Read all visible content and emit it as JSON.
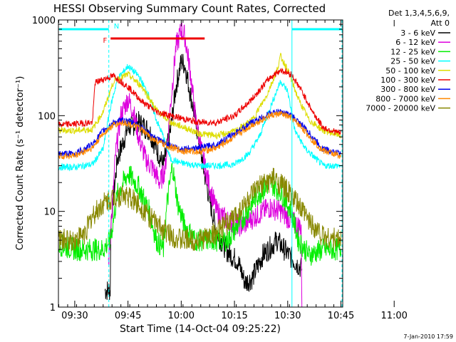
{
  "chart_data": {
    "type": "line",
    "title": "HESSI Observing Summary Count Rates, Corrected",
    "xlabel": "Start Time (14-Oct-04 09:25:22)",
    "ylabel": "Corrected Count Rate (s⁻¹ detector⁻¹)",
    "x_ticks": [
      "09:30",
      "09:45",
      "10:00",
      "10:15",
      "10:30",
      "10:45",
      "11:00"
    ],
    "x_range_minutes_after_09_00": [
      25.4,
      105.5
    ],
    "y_scale": "log",
    "ylim": [
      1,
      1000
    ],
    "y_ticks": [
      "1",
      "10",
      "100",
      "1000"
    ],
    "legend_title": [
      "Det 1,3,4,5,6,9,",
      "Att 0"
    ],
    "legend_position": "right",
    "footer": "7-Jan-2010 17:59",
    "flags": [
      {
        "label": "N",
        "color": "#00ffff",
        "segments": [
          [
            25.6,
            39.6
          ],
          [
            91.2,
            105.3
          ]
        ],
        "y": 800
      },
      {
        "label": "F",
        "color": "#ee0000",
        "segments": [
          [
            40.1,
            66.6
          ]
        ],
        "y": 640
      }
    ],
    "vlines": [
      {
        "x": 39.6,
        "color": "#00ffff",
        "style": "dashed"
      },
      {
        "x": 91.2,
        "color": "#00ffff",
        "style": "solid"
      },
      {
        "x": 105.3,
        "color": "#00ffff",
        "style": "dashed"
      }
    ],
    "series": [
      {
        "name": "3 - 6 keV",
        "color": "#000000",
        "points": [
          [
            38.5,
            1.5
          ],
          [
            40,
            1.5
          ],
          [
            40.2,
            8
          ],
          [
            42,
            35
          ],
          [
            45,
            75
          ],
          [
            48,
            85
          ],
          [
            51,
            70
          ],
          [
            53,
            45
          ],
          [
            55,
            30
          ],
          [
            57,
            70
          ],
          [
            58.5,
            200
          ],
          [
            60,
            370
          ],
          [
            61,
            340
          ],
          [
            62,
            220
          ],
          [
            64,
            90
          ],
          [
            66,
            32
          ],
          [
            68,
            13
          ],
          [
            70,
            6
          ],
          [
            73,
            3.8
          ],
          [
            76,
            3
          ],
          [
            78,
            1.8
          ],
          [
            80,
            2
          ],
          [
            83,
            3.5
          ],
          [
            87,
            5
          ],
          [
            90,
            3.6
          ],
          [
            92,
            3
          ],
          [
            94,
            2.5
          ]
        ]
      },
      {
        "name": "6 - 12 keV",
        "color": "#dd00dd",
        "points": [
          [
            39.5,
            3
          ],
          [
            40,
            5
          ],
          [
            41.5,
            40
          ],
          [
            43,
            100
          ],
          [
            45,
            150
          ],
          [
            46.5,
            110
          ],
          [
            48,
            60
          ],
          [
            50,
            35
          ],
          [
            52,
            28
          ],
          [
            54,
            20
          ],
          [
            55.5,
            28
          ],
          [
            57,
            130
          ],
          [
            58.5,
            520
          ],
          [
            60,
            780
          ],
          [
            61,
            680
          ],
          [
            62.5,
            300
          ],
          [
            64,
            95
          ],
          [
            66,
            38
          ],
          [
            68,
            18
          ],
          [
            70,
            10
          ],
          [
            73,
            8
          ],
          [
            77,
            7
          ],
          [
            81,
            9
          ],
          [
            85,
            11
          ],
          [
            88,
            10
          ],
          [
            91,
            8
          ],
          [
            93,
            7
          ],
          [
            93.8,
            7
          ],
          [
            94,
            0.8
          ]
        ]
      },
      {
        "name": "12 - 25 keV",
        "color": "#00ee00",
        "points": [
          [
            25.5,
            4.5
          ],
          [
            30,
            4
          ],
          [
            35,
            4
          ],
          [
            38,
            4
          ],
          [
            40,
            5
          ],
          [
            42,
            15
          ],
          [
            45,
            25
          ],
          [
            48,
            18
          ],
          [
            51,
            10
          ],
          [
            53,
            5
          ],
          [
            55,
            4
          ],
          [
            56,
            12
          ],
          [
            57.5,
            30
          ],
          [
            59,
            12
          ],
          [
            61,
            7
          ],
          [
            64,
            5
          ],
          [
            68,
            5
          ],
          [
            73,
            5
          ],
          [
            77,
            8
          ],
          [
            81,
            14
          ],
          [
            85,
            20
          ],
          [
            88,
            16
          ],
          [
            91,
            10
          ],
          [
            93,
            5
          ],
          [
            96,
            3.5
          ],
          [
            100,
            4
          ],
          [
            105,
            4
          ]
        ]
      },
      {
        "name": "25 - 50 keV",
        "color": "#00ffff",
        "points": [
          [
            25.5,
            29
          ],
          [
            30,
            29
          ],
          [
            35,
            31
          ],
          [
            38,
            45
          ],
          [
            40,
            120
          ],
          [
            42,
            240
          ],
          [
            45,
            330
          ],
          [
            48,
            260
          ],
          [
            51,
            160
          ],
          [
            53,
            90
          ],
          [
            55,
            60
          ],
          [
            57,
            35
          ],
          [
            60,
            32
          ],
          [
            65,
            30
          ],
          [
            70,
            30
          ],
          [
            75,
            31
          ],
          [
            79,
            40
          ],
          [
            82,
            60
          ],
          [
            85,
            120
          ],
          [
            88,
            230
          ],
          [
            90,
            180
          ],
          [
            92,
            70
          ],
          [
            95,
            45
          ],
          [
            100,
            30
          ],
          [
            105,
            30
          ]
        ]
      },
      {
        "name": "50 - 100 keV",
        "color": "#dddd00",
        "points": [
          [
            25.5,
            70
          ],
          [
            30,
            70
          ],
          [
            35,
            72
          ],
          [
            38,
            110
          ],
          [
            41,
            230
          ],
          [
            45,
            270
          ],
          [
            49,
            200
          ],
          [
            53,
            115
          ],
          [
            57,
            85
          ],
          [
            61,
            75
          ],
          [
            65,
            65
          ],
          [
            70,
            62
          ],
          [
            75,
            68
          ],
          [
            80,
            90
          ],
          [
            84,
            160
          ],
          [
            87,
            300
          ],
          [
            88,
            420
          ],
          [
            90,
            300
          ],
          [
            93,
            150
          ],
          [
            96,
            90
          ],
          [
            100,
            70
          ],
          [
            105,
            62
          ]
        ]
      },
      {
        "name": "100 - 300 keV",
        "color": "#ee0000",
        "points": [
          [
            25.5,
            80
          ],
          [
            30,
            82
          ],
          [
            35,
            85
          ],
          [
            35.7,
            220
          ],
          [
            38,
            240
          ],
          [
            41,
            260
          ],
          [
            45,
            200
          ],
          [
            49,
            140
          ],
          [
            53,
            110
          ],
          [
            57,
            100
          ],
          [
            61,
            92
          ],
          [
            65,
            85
          ],
          [
            70,
            85
          ],
          [
            75,
            100
          ],
          [
            80,
            150
          ],
          [
            85,
            250
          ],
          [
            88,
            300
          ],
          [
            91,
            270
          ],
          [
            94,
            180
          ],
          [
            97,
            110
          ],
          [
            100,
            75
          ],
          [
            105,
            65
          ]
        ]
      },
      {
        "name": "300 - 800 keV",
        "color": "#0000ee",
        "points": [
          [
            25.5,
            40
          ],
          [
            30,
            40
          ],
          [
            35,
            50
          ],
          [
            38,
            70
          ],
          [
            41,
            85
          ],
          [
            44,
            90
          ],
          [
            48,
            80
          ],
          [
            52,
            60
          ],
          [
            56,
            50
          ],
          [
            60,
            45
          ],
          [
            65,
            46
          ],
          [
            70,
            50
          ],
          [
            75,
            65
          ],
          [
            80,
            85
          ],
          [
            85,
            105
          ],
          [
            88,
            110
          ],
          [
            91,
            100
          ],
          [
            94,
            80
          ],
          [
            97,
            60
          ],
          [
            100,
            45
          ],
          [
            105,
            40
          ]
        ]
      },
      {
        "name": "800 - 7000 keV",
        "color": "#ff8800",
        "points": [
          [
            25.5,
            38
          ],
          [
            30,
            38
          ],
          [
            35,
            46
          ],
          [
            38,
            65
          ],
          [
            41,
            80
          ],
          [
            44,
            85
          ],
          [
            48,
            75
          ],
          [
            52,
            57
          ],
          [
            56,
            48
          ],
          [
            60,
            43
          ],
          [
            65,
            42
          ],
          [
            70,
            46
          ],
          [
            75,
            60
          ],
          [
            80,
            80
          ],
          [
            85,
            100
          ],
          [
            88,
            105
          ],
          [
            91,
            95
          ],
          [
            94,
            75
          ],
          [
            97,
            55
          ],
          [
            100,
            43
          ],
          [
            105,
            38
          ]
        ]
      },
      {
        "name": "7000 - 20000 keV",
        "color": "#888800",
        "points": [
          [
            25.5,
            5
          ],
          [
            30,
            5
          ],
          [
            33,
            6
          ],
          [
            35,
            9
          ],
          [
            38,
            12
          ],
          [
            41,
            14
          ],
          [
            44,
            15
          ],
          [
            48,
            12
          ],
          [
            52,
            8
          ],
          [
            56,
            6
          ],
          [
            60,
            5
          ],
          [
            65,
            5
          ],
          [
            70,
            6
          ],
          [
            74,
            8
          ],
          [
            78,
            12
          ],
          [
            82,
            18
          ],
          [
            86,
            22
          ],
          [
            89,
            18
          ],
          [
            92,
            13
          ],
          [
            96,
            8
          ],
          [
            100,
            5.5
          ],
          [
            105,
            5
          ]
        ]
      }
    ]
  }
}
